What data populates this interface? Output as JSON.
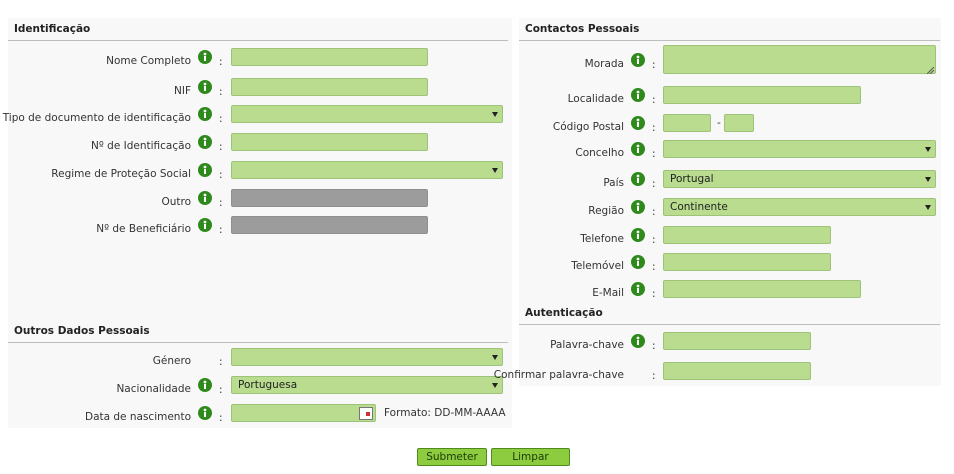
{
  "separator": ":",
  "identificacao": {
    "title": "Identificação",
    "fields": [
      "Nome Completo",
      "NIF",
      "Tipo de documento de identificação",
      "Nº de Identificação",
      "Regime de Proteção Social",
      "Outro",
      "Nº de Beneficiário"
    ]
  },
  "outros_dados_pessoais": {
    "title": "Outros Dados Pessoais",
    "fields": [
      "Género",
      "Nacionalidade",
      "Data de nascimento"
    ],
    "nacionalidade_value": "Portuguesa",
    "date_format": "Formato: DD-MM-AAAA"
  },
  "contactos_pessoais": {
    "title": "Contactos Pessoais",
    "fields": [
      "Morada",
      "Localidade",
      "Código Postal",
      "Concelho",
      "País",
      "Região",
      "Telefone",
      "Telemóvel",
      "E-Mail"
    ],
    "postal_separator": "-",
    "pais_value": "Portugal",
    "regiao_value": "Continente"
  },
  "autenticacao": {
    "title": "Autenticação",
    "fields": [
      "Palavra-chave",
      "Confirmar palavra-chave"
    ]
  },
  "buttons": [
    "Submeter",
    "Limpar"
  ]
}
